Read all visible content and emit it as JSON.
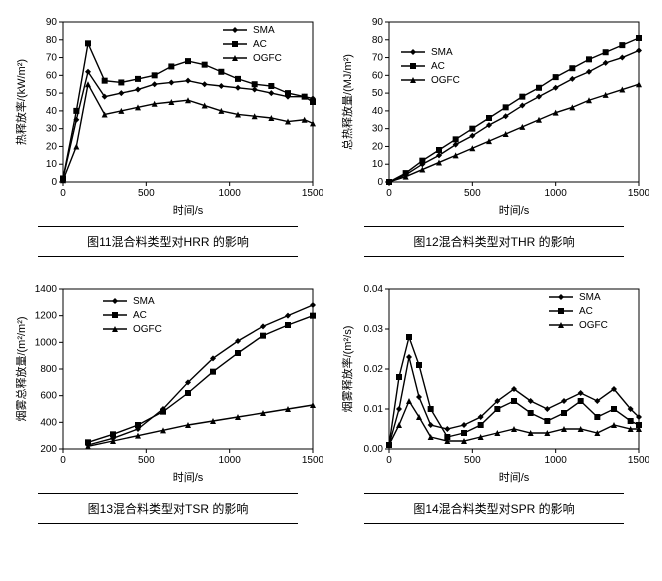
{
  "background_color": "#ffffff",
  "series_order": [
    "SMA",
    "AC",
    "OGFC"
  ],
  "markers": {
    "SMA": "diamond",
    "AC": "square",
    "OGFC": "triangle"
  },
  "line_color": "#000000",
  "grid_color": "#bfbfbf",
  "axis_color": "#000000",
  "tick_fontsize": 10,
  "label_fontsize": 11,
  "caption_fontsize": 12,
  "charts": [
    {
      "id": "c11",
      "caption": "图11混合料类型对HRR 的影响",
      "xlabel": "时间/s",
      "ylabel": "热释放率/(kW/m²)",
      "xlim": [
        0,
        1500
      ],
      "ylim": [
        0,
        90
      ],
      "xticks": [
        0,
        500,
        1000,
        1500
      ],
      "yticks": [
        0,
        10,
        20,
        30,
        40,
        50,
        60,
        70,
        80,
        90
      ],
      "legend_pos": "top-right",
      "series": {
        "SMA": {
          "x": [
            0,
            80,
            150,
            250,
            350,
            450,
            550,
            650,
            750,
            850,
            950,
            1050,
            1150,
            1250,
            1350,
            1450,
            1500
          ],
          "y": [
            2,
            35,
            62,
            48,
            50,
            52,
            55,
            56,
            57,
            55,
            54,
            53,
            52,
            50,
            48,
            48,
            47
          ]
        },
        "AC": {
          "x": [
            0,
            80,
            150,
            250,
            350,
            450,
            550,
            650,
            750,
            850,
            950,
            1050,
            1150,
            1250,
            1350,
            1450,
            1500
          ],
          "y": [
            2,
            40,
            78,
            57,
            56,
            58,
            60,
            65,
            68,
            66,
            62,
            58,
            55,
            54,
            50,
            48,
            45
          ]
        },
        "OGFC": {
          "x": [
            0,
            80,
            150,
            250,
            350,
            450,
            550,
            650,
            750,
            850,
            950,
            1050,
            1150,
            1250,
            1350,
            1450,
            1500
          ],
          "y": [
            1,
            20,
            55,
            38,
            40,
            42,
            44,
            45,
            46,
            43,
            40,
            38,
            37,
            36,
            34,
            35,
            33
          ]
        }
      }
    },
    {
      "id": "c12",
      "caption": "图12混合料类型对THR 的影响",
      "xlabel": "时间/s",
      "ylabel": "总热释放量/(MJ/m²)",
      "xlim": [
        0,
        1500
      ],
      "ylim": [
        0,
        90
      ],
      "xticks": [
        0,
        500,
        1000,
        1500
      ],
      "yticks": [
        0,
        10,
        20,
        30,
        40,
        50,
        60,
        70,
        80,
        90
      ],
      "legend_pos": "left",
      "series": {
        "SMA": {
          "x": [
            0,
            100,
            200,
            300,
            400,
            500,
            600,
            700,
            800,
            900,
            1000,
            1100,
            1200,
            1300,
            1400,
            1500
          ],
          "y": [
            0,
            4,
            10,
            15,
            21,
            26,
            32,
            37,
            43,
            48,
            53,
            58,
            62,
            67,
            70,
            74
          ]
        },
        "AC": {
          "x": [
            0,
            100,
            200,
            300,
            400,
            500,
            600,
            700,
            800,
            900,
            1000,
            1100,
            1200,
            1300,
            1400,
            1500
          ],
          "y": [
            0,
            5,
            12,
            18,
            24,
            30,
            36,
            42,
            48,
            53,
            59,
            64,
            69,
            73,
            77,
            81
          ]
        },
        "OGFC": {
          "x": [
            0,
            100,
            200,
            300,
            400,
            500,
            600,
            700,
            800,
            900,
            1000,
            1100,
            1200,
            1300,
            1400,
            1500
          ],
          "y": [
            0,
            3,
            7,
            11,
            15,
            19,
            23,
            27,
            31,
            35,
            39,
            42,
            46,
            49,
            52,
            55
          ]
        }
      }
    },
    {
      "id": "c13",
      "caption": "图13混合料类型对TSR 的影响",
      "xlabel": "时间/s",
      "ylabel": "烟雾总释放量/(m²/m²)",
      "xlim": [
        0,
        1500
      ],
      "ylim": [
        200,
        1400
      ],
      "xticks": [
        0,
        500,
        1000,
        1500
      ],
      "yticks": [
        200,
        400,
        600,
        800,
        1000,
        1200,
        1400
      ],
      "legend_pos": "top-left-inset",
      "series": {
        "SMA": {
          "x": [
            150,
            300,
            450,
            600,
            750,
            900,
            1050,
            1200,
            1350,
            1500
          ],
          "y": [
            230,
            280,
            350,
            500,
            700,
            880,
            1010,
            1120,
            1200,
            1280
          ]
        },
        "AC": {
          "x": [
            150,
            300,
            450,
            600,
            750,
            900,
            1050,
            1200,
            1350,
            1500
          ],
          "y": [
            250,
            310,
            380,
            480,
            620,
            780,
            920,
            1050,
            1130,
            1200
          ]
        },
        "OGFC": {
          "x": [
            150,
            300,
            450,
            600,
            750,
            900,
            1050,
            1200,
            1350,
            1500
          ],
          "y": [
            220,
            260,
            300,
            340,
            380,
            410,
            440,
            470,
            500,
            530
          ]
        }
      }
    },
    {
      "id": "c14",
      "caption": "图14混合料类型对SPR 的影响",
      "xlabel": "时间/s",
      "ylabel": "烟雾释放率/(m²/s)",
      "xlim": [
        0,
        1500
      ],
      "ylim": [
        0.0,
        0.04
      ],
      "xticks": [
        0,
        500,
        1000,
        1500
      ],
      "yticks": [
        0.0,
        0.01,
        0.02,
        0.03,
        0.04
      ],
      "legend_pos": "top-right",
      "series": {
        "SMA": {
          "x": [
            0,
            60,
            120,
            180,
            250,
            350,
            450,
            550,
            650,
            750,
            850,
            950,
            1050,
            1150,
            1250,
            1350,
            1450,
            1500
          ],
          "y": [
            0.001,
            0.01,
            0.023,
            0.013,
            0.006,
            0.005,
            0.006,
            0.008,
            0.012,
            0.015,
            0.012,
            0.01,
            0.012,
            0.014,
            0.012,
            0.015,
            0.01,
            0.008
          ]
        },
        "AC": {
          "x": [
            0,
            60,
            120,
            180,
            250,
            350,
            450,
            550,
            650,
            750,
            850,
            950,
            1050,
            1150,
            1250,
            1350,
            1450,
            1500
          ],
          "y": [
            0.001,
            0.018,
            0.028,
            0.021,
            0.01,
            0.003,
            0.004,
            0.006,
            0.01,
            0.012,
            0.009,
            0.007,
            0.009,
            0.012,
            0.008,
            0.01,
            0.007,
            0.006
          ]
        },
        "OGFC": {
          "x": [
            0,
            60,
            120,
            180,
            250,
            350,
            450,
            550,
            650,
            750,
            850,
            950,
            1050,
            1150,
            1250,
            1350,
            1450,
            1500
          ],
          "y": [
            0.001,
            0.006,
            0.012,
            0.008,
            0.003,
            0.002,
            0.002,
            0.003,
            0.004,
            0.005,
            0.004,
            0.004,
            0.005,
            0.005,
            0.004,
            0.006,
            0.005,
            0.005
          ]
        }
      }
    }
  ]
}
